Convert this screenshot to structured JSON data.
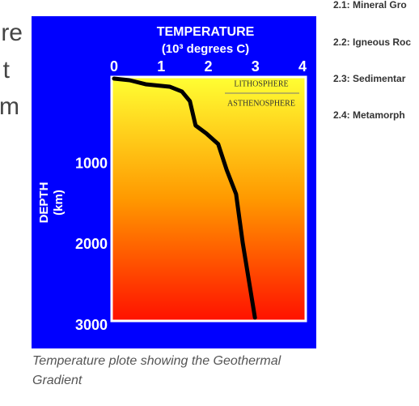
{
  "page_text": [
    "re",
    "t",
    "m"
  ],
  "sidebar": [
    "2.1: Mineral Gro",
    "2.2: Igneous Roc",
    "2.3: Sedimentar",
    "2.4: Metamorph"
  ],
  "caption": "Temperature plote showing the Geothermal Gradient",
  "chart_data": {
    "type": "line",
    "title": "TEMPERATURE",
    "xlabel": "(10³ degrees C)",
    "ylabel": "DEPTH",
    "ylabel_unit": "(km)",
    "x": [
      0,
      0.33,
      0.67,
      1.18,
      1.44,
      1.61,
      1.73,
      1.96,
      2.21,
      2.39,
      2.59,
      2.73,
      2.87,
      2.99
    ],
    "values": [
      0,
      20,
      70,
      100,
      160,
      280,
      580,
      680,
      810,
      1130,
      1430,
      2030,
      2530,
      2960
    ],
    "color": "#000000",
    "xlim": [
      0,
      4
    ],
    "xticks": [
      0,
      1,
      2,
      3,
      4
    ],
    "ylim": [
      0,
      3000
    ],
    "yticks": [
      1000,
      2000,
      3000
    ],
    "y_inverted": true,
    "annotations": [
      "LITHOSPHERE",
      "ASTHENOSPHERE"
    ]
  }
}
